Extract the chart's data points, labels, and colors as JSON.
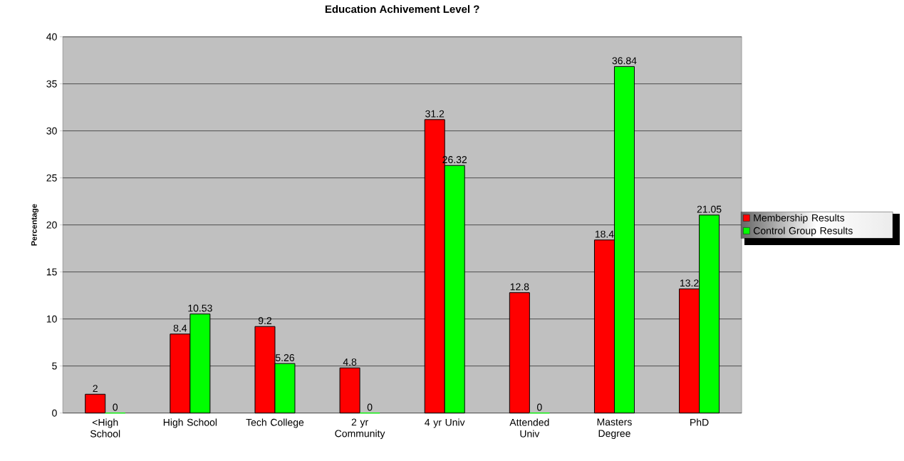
{
  "chart_data": {
    "type": "bar",
    "title": "Education Achivement Level ?",
    "ylabel": "Percentage",
    "categories": [
      "<High School",
      "High School",
      "Tech College",
      "2 yr Community",
      "4 yr Univ",
      "Attended Univ",
      "Masters Degree",
      "PhD"
    ],
    "series": [
      {
        "name": "Membership Results",
        "color": "#ff0000",
        "values": [
          2,
          8.4,
          9.2,
          4.8,
          31.2,
          12.8,
          18.4,
          13.2
        ]
      },
      {
        "name": "Control Group Results",
        "color": "#00ff00",
        "values": [
          0,
          10.53,
          5.26,
          0,
          26.32,
          0,
          36.84,
          21.05
        ]
      }
    ],
    "ylim": [
      0,
      40
    ],
    "yticks": [
      0,
      5,
      10,
      15,
      20,
      25,
      30,
      35,
      40
    ],
    "grid": "y",
    "legend": "right",
    "data_labels": true
  }
}
